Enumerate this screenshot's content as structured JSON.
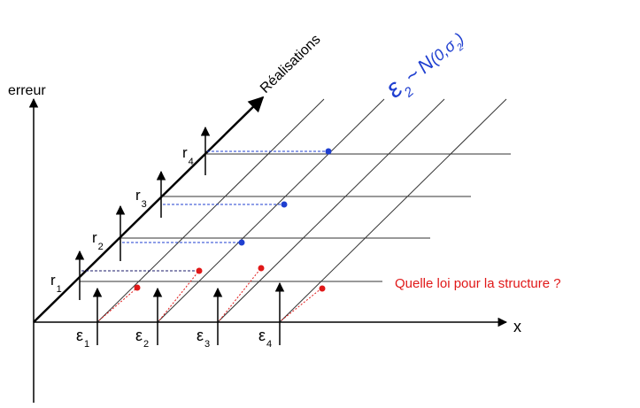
{
  "axes": {
    "y_label": "erreur",
    "x_label": "x",
    "diagonal_label": "Réalisations"
  },
  "realisations": [
    {
      "label": "r",
      "sub": "1"
    },
    {
      "label": "r",
      "sub": "2"
    },
    {
      "label": "r",
      "sub": "3"
    },
    {
      "label": "r",
      "sub": "4"
    }
  ],
  "epsilons": [
    {
      "label": "ε",
      "sub": "1"
    },
    {
      "label": "ε",
      "sub": "2"
    },
    {
      "label": "ε",
      "sub": "3"
    },
    {
      "label": "ε",
      "sub": "4"
    }
  ],
  "distribution": {
    "eps": "ε",
    "eps_sub": "2",
    "tilde": "~",
    "normal": "N",
    "open": "(0,σ",
    "sigma_sub": "2",
    "close": ")"
  },
  "question": "Quelle loi pour la structure ?",
  "colors": {
    "axis": "#000000",
    "grid": "#333333",
    "blue": "#1f3fd0",
    "red": "#e01818",
    "distribution": "#1f3fd0",
    "question": "#e01818"
  }
}
